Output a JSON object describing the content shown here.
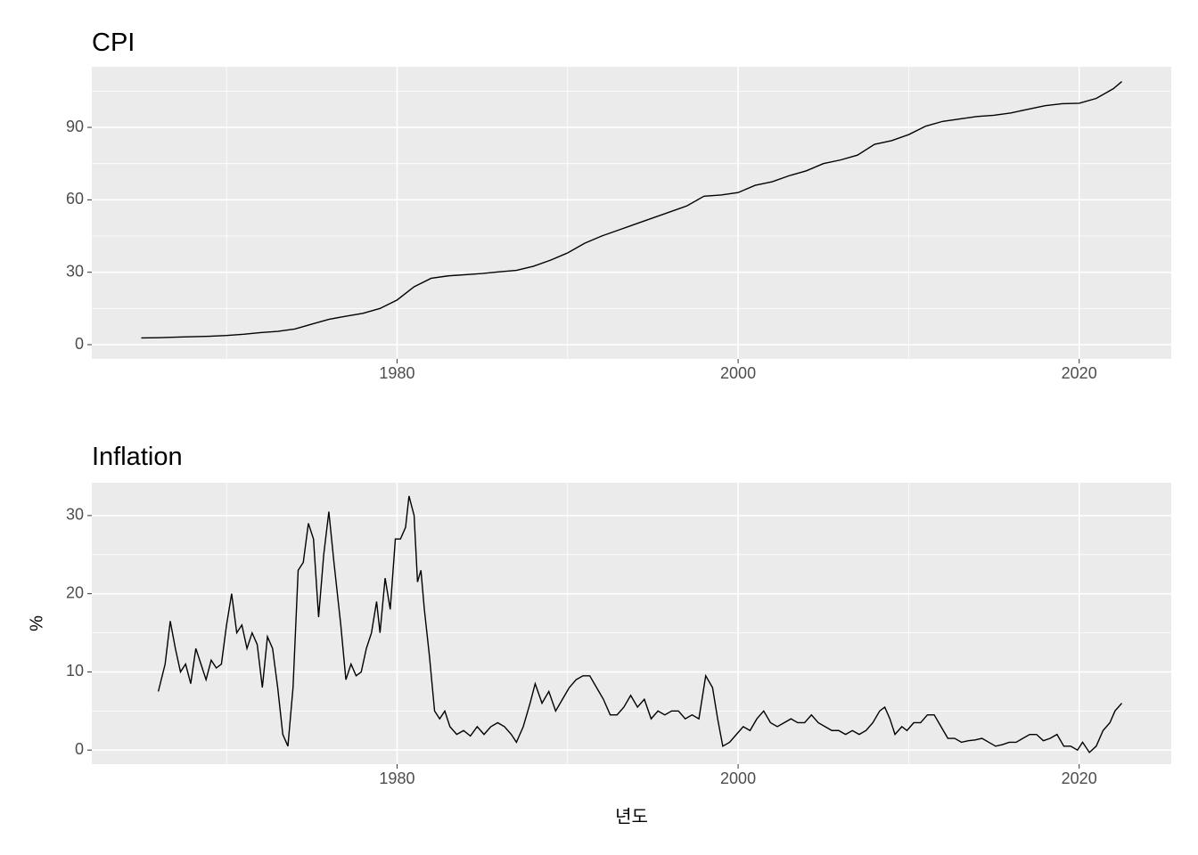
{
  "chart_data": [
    {
      "type": "line",
      "title": "CPI",
      "color": "#000000",
      "grid": true,
      "x": [
        1965,
        1966,
        1967,
        1968,
        1969,
        1970,
        1971,
        1972,
        1973,
        1974,
        1975,
        1976,
        1977,
        1978,
        1979,
        1980,
        1981,
        1982,
        1983,
        1984,
        1985,
        1986,
        1987,
        1988,
        1989,
        1990,
        1991,
        1992,
        1993,
        1994,
        1995,
        1996,
        1997,
        1998,
        1999,
        2000,
        2001,
        2002,
        2003,
        2004,
        2005,
        2006,
        2007,
        2008,
        2009,
        2010,
        2011,
        2012,
        2013,
        2014,
        2015,
        2016,
        2017,
        2018,
        2019,
        2020,
        2021,
        2022,
        2022.5
      ],
      "values": [
        2.8,
        2.9,
        3.1,
        3.3,
        3.5,
        3.8,
        4.3,
        5,
        5.5,
        6.5,
        8.5,
        10.5,
        11.8,
        13,
        15,
        18.5,
        24,
        27.5,
        28.5,
        29,
        29.5,
        30.2,
        30.8,
        32.5,
        35,
        38,
        42,
        45,
        47.5,
        50,
        52.5,
        55,
        57.5,
        61.5,
        62,
        63,
        66,
        67.5,
        70,
        72,
        75,
        76.5,
        78.5,
        83,
        84.5,
        87,
        90.5,
        92.5,
        93.5,
        94.5,
        95,
        96,
        97.5,
        99,
        99.8,
        100,
        102,
        106,
        109
      ],
      "xlim": [
        1962.1,
        2025.4
      ],
      "xticks": [
        1980,
        2000,
        2020
      ],
      "x_minor_ticks": [
        1970,
        1990,
        2010
      ],
      "ylim": [
        -5.9,
        115.1
      ],
      "yticks": [
        0,
        30,
        60,
        90
      ],
      "y_minor_ticks": [
        15,
        45,
        75,
        105
      ]
    },
    {
      "type": "line",
      "title": "Inflation",
      "xlabel": "년도",
      "ylabel": "%",
      "color": "#000000",
      "grid": true,
      "x": [
        1966.0,
        1966.4,
        1966.7,
        1967.0,
        1967.3,
        1967.6,
        1967.9,
        1968.2,
        1968.5,
        1968.8,
        1969.1,
        1969.4,
        1969.7,
        1970.0,
        1970.3,
        1970.6,
        1970.9,
        1971.2,
        1971.5,
        1971.8,
        1972.1,
        1972.4,
        1972.7,
        1973.0,
        1973.3,
        1973.6,
        1973.9,
        1974.2,
        1974.5,
        1974.8,
        1975.1,
        1975.4,
        1975.7,
        1976.0,
        1976.3,
        1976.7,
        1977.0,
        1977.3,
        1977.6,
        1977.9,
        1978.2,
        1978.5,
        1978.8,
        1979.0,
        1979.3,
        1979.6,
        1979.9,
        1980.2,
        1980.5,
        1980.7,
        1981.0,
        1981.2,
        1981.4,
        1981.6,
        1981.9,
        1982.2,
        1982.5,
        1982.8,
        1983.1,
        1983.5,
        1983.9,
        1984.3,
        1984.7,
        1985.1,
        1985.5,
        1985.9,
        1986.3,
        1986.7,
        1987.0,
        1987.4,
        1987.8,
        1988.1,
        1988.5,
        1988.9,
        1989.3,
        1989.7,
        1990.1,
        1990.5,
        1990.9,
        1991.3,
        1991.7,
        1992.1,
        1992.5,
        1992.9,
        1993.3,
        1993.7,
        1994.1,
        1994.5,
        1994.9,
        1995.3,
        1995.7,
        1996.1,
        1996.5,
        1996.9,
        1997.3,
        1997.7,
        1998.1,
        1998.5,
        1998.8,
        1999.1,
        1999.5,
        1999.9,
        2000.3,
        2000.7,
        2001.1,
        2001.5,
        2001.9,
        2002.3,
        2002.7,
        2003.1,
        2003.5,
        2003.9,
        2004.3,
        2004.7,
        2005.1,
        2005.5,
        2005.9,
        2006.3,
        2006.7,
        2007.1,
        2007.5,
        2007.9,
        2008.3,
        2008.6,
        2008.9,
        2009.2,
        2009.6,
        2009.9,
        2010.3,
        2010.7,
        2011.1,
        2011.5,
        2011.9,
        2012.3,
        2012.7,
        2013.1,
        2013.5,
        2013.9,
        2014.3,
        2014.7,
        2015.1,
        2015.5,
        2015.9,
        2016.3,
        2016.7,
        2017.1,
        2017.5,
        2017.9,
        2018.3,
        2018.7,
        2019.1,
        2019.5,
        2019.9,
        2020.2,
        2020.6,
        2021.0,
        2021.4,
        2021.8,
        2022.1,
        2022.5
      ],
      "values": [
        7.5,
        11,
        16.5,
        13,
        10,
        11,
        8.5,
        13,
        11,
        9,
        11.5,
        10.5,
        11,
        16,
        20,
        15,
        16,
        13,
        15,
        13.5,
        8,
        14.5,
        13,
        8,
        2,
        0.5,
        8,
        23,
        24,
        29,
        27,
        17,
        25,
        30.5,
        24,
        16,
        9,
        11,
        9.5,
        10,
        13,
        15,
        19,
        15,
        22,
        18,
        27,
        27,
        28.5,
        32.5,
        30,
        21.5,
        23,
        18,
        12,
        5,
        4,
        5,
        3,
        2,
        2.5,
        1.8,
        3,
        2,
        3,
        3.5,
        3,
        2,
        1,
        3,
        6,
        8.5,
        6,
        7.5,
        5,
        6.5,
        8,
        9,
        9.5,
        9.5,
        8,
        6.5,
        4.5,
        4.5,
        5.5,
        7,
        5.5,
        6.5,
        4,
        5,
        4.5,
        5,
        5,
        4,
        4.5,
        4,
        9.5,
        8,
        4,
        0.5,
        1,
        2,
        3,
        2.5,
        4,
        5,
        3.5,
        3,
        3.5,
        4,
        3.5,
        3.5,
        4.5,
        3.5,
        3,
        2.5,
        2.5,
        2,
        2.5,
        2,
        2.5,
        3.5,
        5,
        5.5,
        4,
        2,
        3,
        2.5,
        3.5,
        3.5,
        4.5,
        4.5,
        3,
        1.5,
        1.5,
        1,
        1.2,
        1.3,
        1.5,
        1,
        0.5,
        0.7,
        1,
        1,
        1.5,
        2,
        2,
        1.2,
        1.5,
        2,
        0.5,
        0.5,
        0,
        1,
        -0.3,
        0.5,
        2.5,
        3.5,
        5,
        6
      ],
      "xlim": [
        1962.1,
        2025.4
      ],
      "xticks": [
        1980,
        2000,
        2020
      ],
      "x_minor_ticks": [
        1970,
        1990,
        2010
      ],
      "ylim": [
        -1.8,
        34.2
      ],
      "yticks": [
        0,
        10,
        20,
        30
      ],
      "y_minor_ticks": [
        5,
        15,
        25
      ]
    }
  ]
}
